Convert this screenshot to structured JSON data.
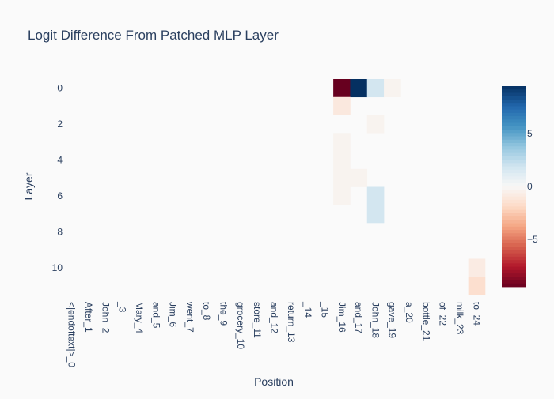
{
  "chart_data": {
    "type": "heatmap",
    "title": "Logit Difference From Patched MLP Layer",
    "xlabel": "Position",
    "ylabel": "Layer",
    "x": [
      "<|endoftext|>_0",
      "After_1",
      "John_2",
      "_3",
      "Mary_4",
      "and_5",
      "Jim_6",
      "went_7",
      "to_8",
      "the_9",
      "grocery_10",
      "store_11",
      "and_12",
      "return_13",
      "_14",
      "_15",
      "Jim_16",
      "and_17",
      "John_18",
      "gave_19",
      "a_20",
      "bottle_21",
      "of_22",
      "milk_23",
      "to_24"
    ],
    "y": [
      0,
      1,
      2,
      3,
      4,
      5,
      6,
      7,
      8,
      9,
      10,
      11
    ],
    "y_ticks": [
      0,
      2,
      4,
      6,
      8,
      10
    ],
    "colorscale": "RdBu",
    "zmin": -9.5,
    "zmax": 9.5,
    "colorbar_ticks": [
      5,
      0,
      -5
    ],
    "colorbar_tick_labels": [
      "5",
      "0",
      "−5"
    ],
    "cells": [
      {
        "row": 0,
        "col": 16,
        "value": -9.5
      },
      {
        "row": 0,
        "col": 17,
        "value": 9.5
      },
      {
        "row": 0,
        "col": 18,
        "value": 1.8
      },
      {
        "row": 0,
        "col": 19,
        "value": -0.3
      },
      {
        "row": 1,
        "col": 16,
        "value": -1.0
      },
      {
        "row": 2,
        "col": 18,
        "value": -0.3
      },
      {
        "row": 3,
        "col": 16,
        "value": -0.3
      },
      {
        "row": 4,
        "col": 16,
        "value": -0.3
      },
      {
        "row": 5,
        "col": 16,
        "value": -0.3
      },
      {
        "row": 5,
        "col": 17,
        "value": -0.3
      },
      {
        "row": 6,
        "col": 16,
        "value": -0.3
      },
      {
        "row": 6,
        "col": 18,
        "value": 1.8
      },
      {
        "row": 7,
        "col": 18,
        "value": 1.8
      },
      {
        "row": 10,
        "col": 24,
        "value": -0.8
      },
      {
        "row": 11,
        "col": 24,
        "value": -1.6
      }
    ]
  }
}
